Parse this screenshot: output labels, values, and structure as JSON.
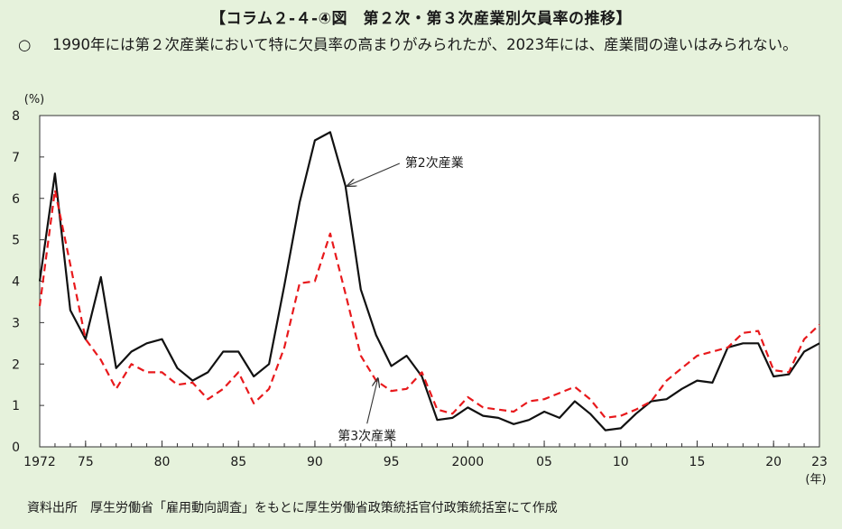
{
  "header": {
    "title": "【コラム２-４-④図　第２次・第３次産業別欠員率の推移】",
    "summary_mark": "○",
    "summary": "1990年には第２次産業において特に欠員率の高まりがみられたが、2023年には、産業間の違いはみられない。"
  },
  "footer": {
    "source": "資料出所　厚生労働省「雇用動向調査」をもとに厚生労働省政策統括官付政策統括室にて作成"
  },
  "chart_data": {
    "type": "line",
    "ylabel": "(%)",
    "xlabel": "(年)",
    "ylim": [
      0,
      8
    ],
    "xlim": [
      1972,
      2023
    ],
    "y_ticks": [
      "0",
      "1",
      "2",
      "3",
      "4",
      "5",
      "6",
      "7",
      "8"
    ],
    "x_ticks": [
      {
        "value": 1972,
        "label": "1972"
      },
      {
        "value": 1975,
        "label": "75"
      },
      {
        "value": 1980,
        "label": "80"
      },
      {
        "value": 1985,
        "label": "85"
      },
      {
        "value": 1990,
        "label": "90"
      },
      {
        "value": 1995,
        "label": "95"
      },
      {
        "value": 2000,
        "label": "2000"
      },
      {
        "value": 2005,
        "label": "05"
      },
      {
        "value": 2010,
        "label": "10"
      },
      {
        "value": 2015,
        "label": "15"
      },
      {
        "value": 2020,
        "label": "20"
      },
      {
        "value": 2023,
        "label": "23"
      }
    ],
    "grid": false,
    "x": [
      1972,
      1973,
      1974,
      1975,
      1976,
      1977,
      1978,
      1979,
      1980,
      1981,
      1982,
      1983,
      1984,
      1985,
      1986,
      1987,
      1988,
      1989,
      1990,
      1991,
      1992,
      1993,
      1994,
      1995,
      1996,
      1997,
      1998,
      1999,
      2000,
      2001,
      2002,
      2003,
      2004,
      2005,
      2006,
      2007,
      2008,
      2009,
      2010,
      2011,
      2012,
      2013,
      2014,
      2015,
      2016,
      2017,
      2018,
      2019,
      2020,
      2021,
      2022,
      2023
    ],
    "series": [
      {
        "name": "第2次産業",
        "color": "#111111",
        "style": "solid",
        "values": [
          4.0,
          6.6,
          3.3,
          2.6,
          4.1,
          1.9,
          2.3,
          2.5,
          2.6,
          1.9,
          1.6,
          1.8,
          2.3,
          2.3,
          1.7,
          2.0,
          3.9,
          5.9,
          7.4,
          7.6,
          6.3,
          3.8,
          2.7,
          1.95,
          2.2,
          1.7,
          0.65,
          0.7,
          0.95,
          0.75,
          0.7,
          0.55,
          0.65,
          0.85,
          0.7,
          1.1,
          0.8,
          0.4,
          0.45,
          0.8,
          1.1,
          1.15,
          1.4,
          1.6,
          1.55,
          2.4,
          2.5,
          2.5,
          1.7,
          1.75,
          2.3,
          2.5
        ]
      },
      {
        "name": "第3次産業",
        "color": "#e8191c",
        "style": "dashed",
        "values": [
          3.4,
          6.2,
          4.4,
          2.6,
          2.1,
          1.4,
          2.0,
          1.8,
          1.8,
          1.5,
          1.55,
          1.15,
          1.4,
          1.8,
          1.05,
          1.4,
          2.4,
          3.95,
          4.0,
          5.15,
          3.7,
          2.2,
          1.6,
          1.35,
          1.4,
          1.8,
          0.9,
          0.8,
          1.2,
          0.95,
          0.9,
          0.85,
          1.1,
          1.15,
          1.3,
          1.45,
          1.15,
          0.7,
          0.75,
          0.9,
          1.1,
          1.6,
          1.9,
          2.2,
          2.3,
          2.4,
          2.75,
          2.8,
          1.85,
          1.8,
          2.6,
          2.95
        ]
      }
    ],
    "annotations": [
      {
        "series": "第2次産業",
        "label": "第2次産業",
        "x": 1992,
        "y": 6.3
      },
      {
        "series": "第3次産業",
        "label": "第3次産業",
        "x": 1994,
        "y": 1.65
      }
    ]
  }
}
